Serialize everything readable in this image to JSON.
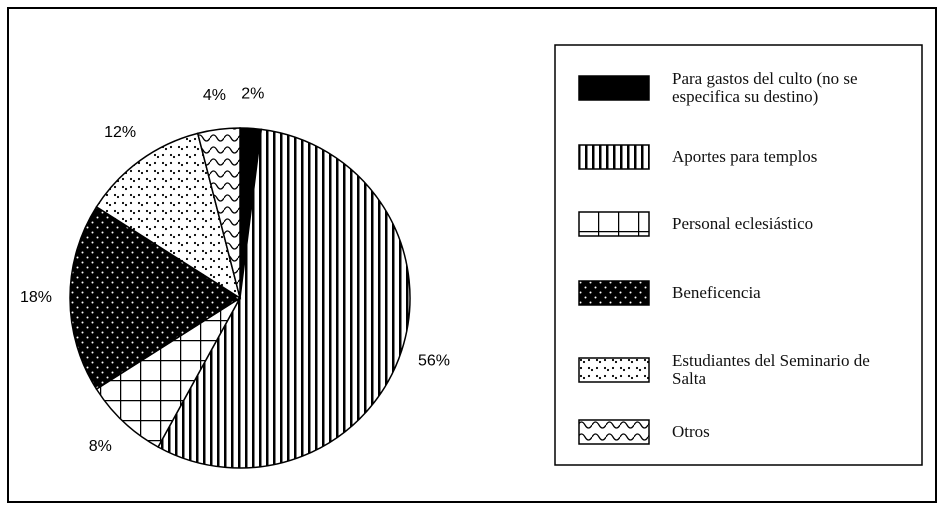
{
  "chart_data": {
    "type": "pie",
    "categories": [
      "Para gastos del culto (no se especifica su destino)",
      "Aportes para templos",
      "Personal eclesiástico",
      "Beneficencia",
      "Estudiantes del Seminario de Salta",
      "Otros"
    ],
    "values": [
      2,
      56,
      8,
      18,
      12,
      4
    ],
    "value_labels": [
      "2%",
      "56%",
      "8%",
      "18%",
      "12%",
      "4%"
    ]
  }
}
